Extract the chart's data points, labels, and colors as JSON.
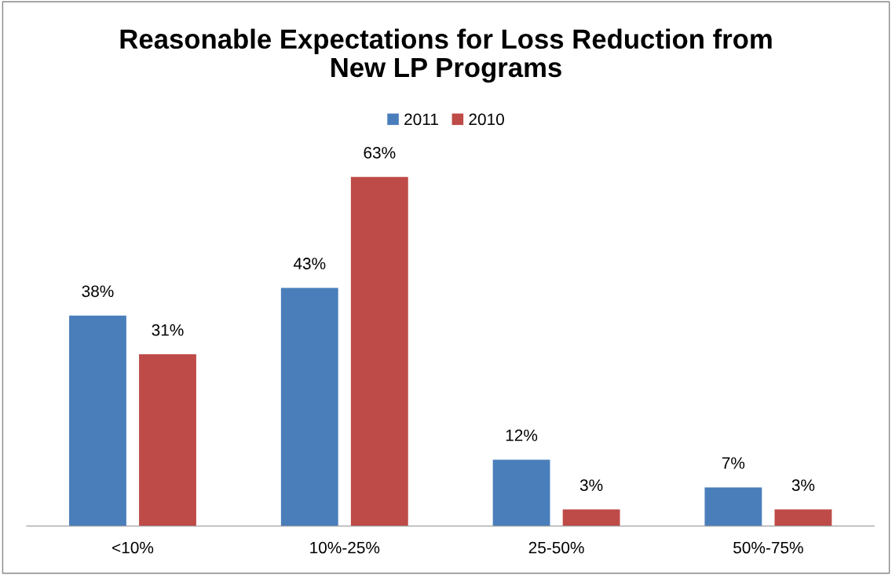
{
  "chart_data": {
    "type": "bar",
    "title": "Reasonable Expectations for Loss Reduction from\nNew LP Programs",
    "categories": [
      "<10%",
      "10%-25%",
      "25-50%",
      "50%-75%"
    ],
    "series": [
      {
        "name": "2011",
        "color": "#4a7ebb",
        "values": [
          38,
          43,
          12,
          7
        ],
        "value_labels": [
          "38%",
          "43%",
          "12%",
          "7%"
        ]
      },
      {
        "name": "2010",
        "color": "#be4b48",
        "values": [
          31,
          63,
          3,
          3
        ],
        "value_labels": [
          "31%",
          "63%",
          "3%",
          "3%"
        ]
      }
    ],
    "legend": "top",
    "grid": false
  }
}
